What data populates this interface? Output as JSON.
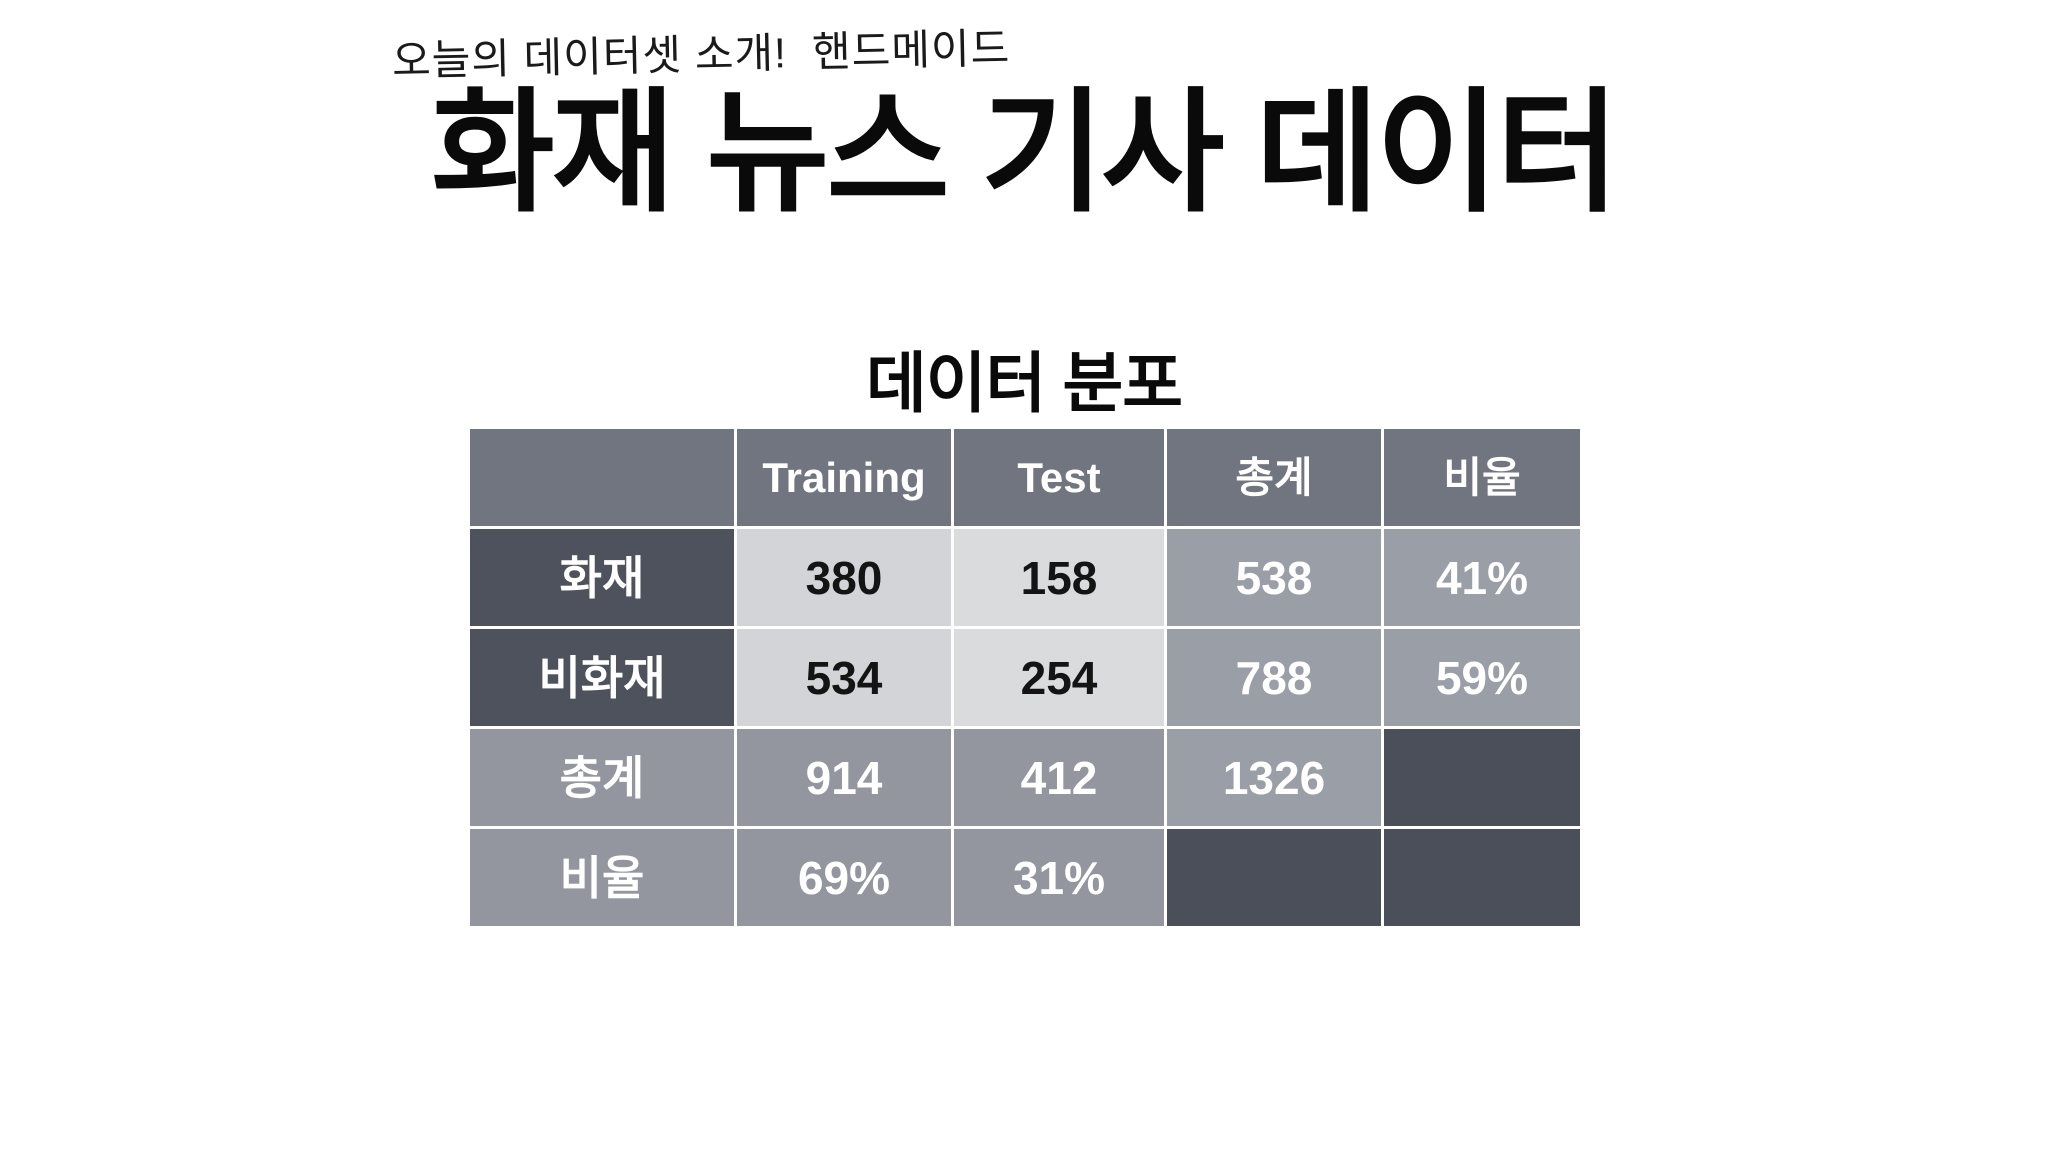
{
  "slide": {
    "note": "오늘의 데이터셋 소개!  핸드메이드",
    "title": "화재 뉴스 기사 데이터",
    "subtitle": "데이터 분포"
  },
  "table": {
    "columns": [
      "",
      "Training",
      "Test",
      "총계",
      "비율"
    ],
    "rows": [
      {
        "header": "화재",
        "values": [
          "380",
          "158",
          "538",
          "41%"
        ]
      },
      {
        "header": "비화재",
        "values": [
          "534",
          "254",
          "788",
          "59%"
        ]
      },
      {
        "header": "총계",
        "values": [
          "914",
          "412",
          "1326",
          ""
        ]
      },
      {
        "header": "비율",
        "values": [
          "69%",
          "31%",
          "",
          ""
        ]
      }
    ]
  },
  "colors": {
    "bg": "#ffffff",
    "titleColor": "#0a0a0a",
    "noteColor": "#1a1a1a",
    "header": "#71757f",
    "rowHeaderDark": "#4d525c",
    "light1": "#d3d4d7",
    "light2": "#dadbdd",
    "med1": "#9a9ea6",
    "med2": "#93969e",
    "emptyDark": "#4a4f59",
    "lightCellText": "#141414"
  },
  "chart_data": {
    "type": "table",
    "title": "데이터 분포",
    "columns": [
      "",
      "Training",
      "Test",
      "총계",
      "비율"
    ],
    "rows": [
      [
        "화재",
        380,
        158,
        538,
        "41%"
      ],
      [
        "비화재",
        534,
        254,
        788,
        "59%"
      ],
      [
        "총계",
        914,
        412,
        1326,
        ""
      ],
      [
        "비율",
        "69%",
        "31%",
        "",
        ""
      ]
    ]
  }
}
